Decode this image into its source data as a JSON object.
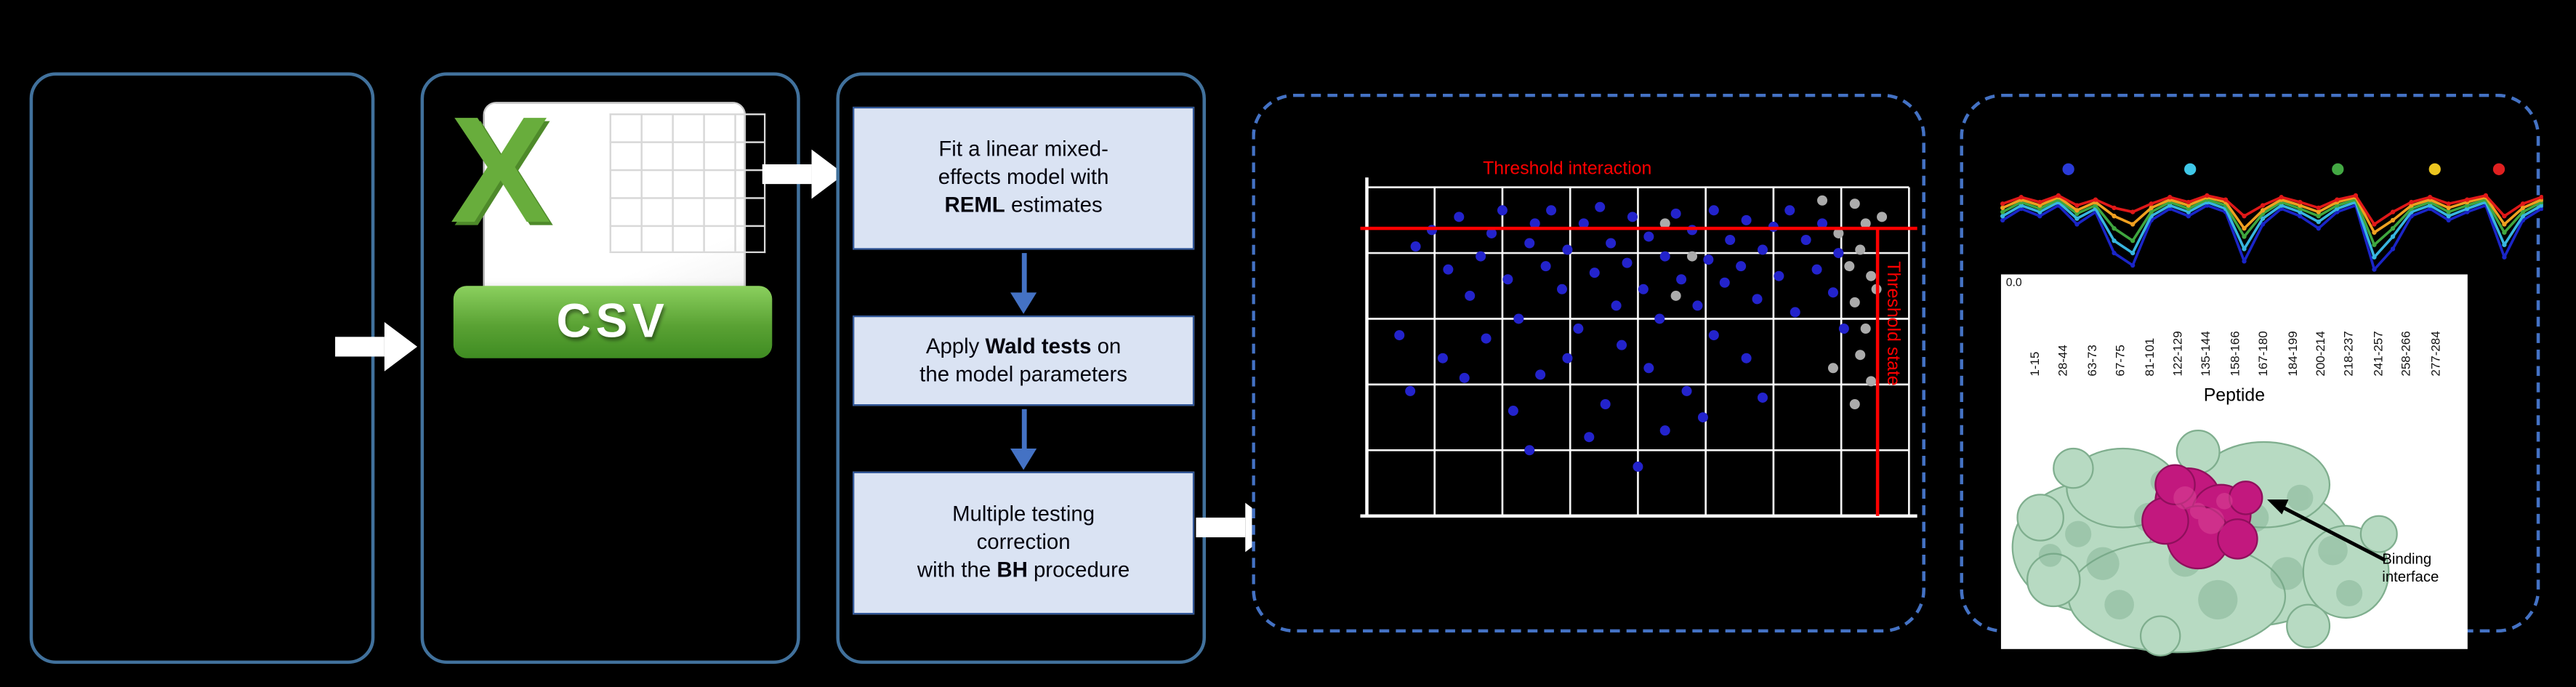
{
  "figure": {
    "background": "#000000",
    "solid_border_color": "#41719c",
    "dashed_border_color": "#4472c4",
    "flow_arrow_color": "#ffffff"
  },
  "csv_icon": {
    "logo_letter": "X",
    "banner_label": "CSV",
    "logo_green": "#68ad3c",
    "banner_green": "#5aa234"
  },
  "pipeline": {
    "step_fill": "#dae3f3",
    "step_border": "#2f5597",
    "down_arrow_color": "#4472c4",
    "steps": [
      {
        "pre": "Fit a linear mixed-\neffects model with\n",
        "bold": "REML",
        "post": " estimates"
      },
      {
        "pre": "Apply ",
        "bold": "Wald tests",
        "post": " on\nthe model parameters"
      },
      {
        "pre": "Multiple testing\ncorrection\nwith the ",
        "bold": "BH",
        "post": " procedure"
      }
    ]
  },
  "chart_data": [
    {
      "id": "global-peptide-scatter",
      "type": "scatter",
      "grid": true,
      "grid_color": "#ffffff",
      "axis_color": "#ffffff",
      "x_range": [
        0,
        1
      ],
      "y_range": [
        0,
        1
      ],
      "threshold_color": "#ff0000",
      "thresholds": {
        "horizontal_y": 0.125,
        "vertical_x": 0.942
      },
      "threshold_labels": {
        "horizontal": "Threshold interaction",
        "vertical": "Threshold state"
      },
      "series": [
        {
          "name": "significant-peptides",
          "color": "#2323cc",
          "points": [
            [
              0.06,
              0.45
            ],
            [
              0.09,
              0.18
            ],
            [
              0.12,
              0.13
            ],
            [
              0.15,
              0.25
            ],
            [
              0.17,
              0.09
            ],
            [
              0.19,
              0.33
            ],
            [
              0.21,
              0.21
            ],
            [
              0.23,
              0.14
            ],
            [
              0.25,
              0.07
            ],
            [
              0.26,
              0.28
            ],
            [
              0.28,
              0.4
            ],
            [
              0.3,
              0.17
            ],
            [
              0.31,
              0.11
            ],
            [
              0.33,
              0.24
            ],
            [
              0.34,
              0.07
            ],
            [
              0.36,
              0.31
            ],
            [
              0.37,
              0.19
            ],
            [
              0.39,
              0.43
            ],
            [
              0.4,
              0.11
            ],
            [
              0.42,
              0.26
            ],
            [
              0.43,
              0.06
            ],
            [
              0.45,
              0.17
            ],
            [
              0.46,
              0.36
            ],
            [
              0.48,
              0.23
            ],
            [
              0.49,
              0.09
            ],
            [
              0.51,
              0.31
            ],
            [
              0.52,
              0.15
            ],
            [
              0.54,
              0.4
            ],
            [
              0.55,
              0.21
            ],
            [
              0.57,
              0.08
            ],
            [
              0.58,
              0.28
            ],
            [
              0.6,
              0.13
            ],
            [
              0.61,
              0.36
            ],
            [
              0.63,
              0.22
            ],
            [
              0.64,
              0.07
            ],
            [
              0.66,
              0.29
            ],
            [
              0.67,
              0.16
            ],
            [
              0.69,
              0.24
            ],
            [
              0.7,
              0.1
            ],
            [
              0.72,
              0.34
            ],
            [
              0.73,
              0.19
            ],
            [
              0.75,
              0.12
            ],
            [
              0.76,
              0.27
            ],
            [
              0.78,
              0.07
            ],
            [
              0.79,
              0.38
            ],
            [
              0.81,
              0.16
            ],
            [
              0.83,
              0.25
            ],
            [
              0.84,
              0.11
            ],
            [
              0.86,
              0.32
            ],
            [
              0.87,
              0.2
            ],
            [
              0.14,
              0.52
            ],
            [
              0.32,
              0.57
            ],
            [
              0.44,
              0.66
            ],
            [
              0.52,
              0.55
            ],
            [
              0.27,
              0.68
            ],
            [
              0.59,
              0.62
            ],
            [
              0.37,
              0.52
            ],
            [
              0.7,
              0.52
            ],
            [
              0.22,
              0.46
            ],
            [
              0.47,
              0.48
            ],
            [
              0.64,
              0.45
            ],
            [
              0.08,
              0.62
            ],
            [
              0.88,
              0.43
            ],
            [
              0.55,
              0.74
            ],
            [
              0.3,
              0.8
            ],
            [
              0.73,
              0.64
            ],
            [
              0.18,
              0.58
            ],
            [
              0.41,
              0.76
            ],
            [
              0.62,
              0.7
            ],
            [
              0.5,
              0.85
            ]
          ]
        },
        {
          "name": "non-significant-peptides",
          "color": "#ababab",
          "points": [
            [
              0.9,
              0.05
            ],
            [
              0.92,
              0.11
            ],
            [
              0.91,
              0.19
            ],
            [
              0.93,
              0.27
            ],
            [
              0.9,
              0.35
            ],
            [
              0.92,
              0.43
            ],
            [
              0.91,
              0.51
            ],
            [
              0.93,
              0.59
            ],
            [
              0.9,
              0.66
            ],
            [
              0.84,
              0.04
            ],
            [
              0.87,
              0.14
            ],
            [
              0.55,
              0.11
            ],
            [
              0.6,
              0.21
            ],
            [
              0.57,
              0.33
            ],
            [
              0.95,
              0.09
            ],
            [
              0.94,
              0.31
            ],
            [
              0.86,
              0.55
            ],
            [
              0.89,
              0.24
            ]
          ]
        }
      ]
    },
    {
      "id": "deuterium-uptake-lines",
      "type": "line",
      "x_count": 30,
      "y_tick_label": "0.0",
      "series": [
        {
          "name": "series-darkblue",
          "color": "#1a25c8",
          "values": [
            0.4,
            0.26,
            0.35,
            0.22,
            0.45,
            0.3,
            0.8,
            0.95,
            0.4,
            0.26,
            0.35,
            0.22,
            0.3,
            0.9,
            0.45,
            0.26,
            0.35,
            0.5,
            0.3,
            0.22,
            1.0,
            0.75,
            0.35,
            0.26,
            0.4,
            0.3,
            0.22,
            0.85,
            0.4,
            0.26
          ]
        },
        {
          "name": "series-cyan",
          "color": "#38b6e0",
          "values": [
            0.35,
            0.22,
            0.3,
            0.18,
            0.38,
            0.26,
            0.65,
            0.8,
            0.35,
            0.22,
            0.3,
            0.18,
            0.26,
            0.75,
            0.38,
            0.22,
            0.3,
            0.42,
            0.26,
            0.18,
            0.85,
            0.6,
            0.3,
            0.22,
            0.35,
            0.26,
            0.18,
            0.7,
            0.35,
            0.22
          ]
        },
        {
          "name": "series-green",
          "color": "#3fa73f",
          "values": [
            0.3,
            0.18,
            0.26,
            0.15,
            0.32,
            0.22,
            0.5,
            0.65,
            0.3,
            0.18,
            0.26,
            0.15,
            0.22,
            0.6,
            0.32,
            0.18,
            0.26,
            0.35,
            0.22,
            0.15,
            0.7,
            0.5,
            0.26,
            0.18,
            0.3,
            0.22,
            0.15,
            0.55,
            0.3,
            0.18
          ]
        },
        {
          "name": "series-orange",
          "color": "#f0a020",
          "values": [
            0.25,
            0.15,
            0.22,
            0.12,
            0.28,
            0.18,
            0.35,
            0.45,
            0.25,
            0.15,
            0.22,
            0.12,
            0.18,
            0.5,
            0.28,
            0.15,
            0.22,
            0.3,
            0.18,
            0.12,
            0.55,
            0.4,
            0.22,
            0.15,
            0.25,
            0.18,
            0.12,
            0.45,
            0.25,
            0.15
          ]
        },
        {
          "name": "series-red",
          "color": "#e01818",
          "values": [
            0.2,
            0.12,
            0.18,
            0.1,
            0.22,
            0.15,
            0.25,
            0.3,
            0.2,
            0.12,
            0.18,
            0.1,
            0.15,
            0.35,
            0.22,
            0.12,
            0.18,
            0.25,
            0.15,
            0.1,
            0.45,
            0.3,
            0.18,
            0.12,
            0.2,
            0.15,
            0.1,
            0.35,
            0.2,
            0.12
          ]
        }
      ],
      "top_dots": [
        {
          "color": "#2a3bd8",
          "x": 0.122
        },
        {
          "color": "#3fc8e8",
          "x": 0.348
        },
        {
          "color": "#43a843",
          "x": 0.622
        },
        {
          "color": "#ecc51f",
          "x": 0.802
        },
        {
          "color": "#e02020",
          "x": 0.921
        }
      ]
    }
  ],
  "peptide_axis": {
    "y_tick": "0.0",
    "title": "Peptide",
    "labels": [
      "1-15",
      "28-44",
      "63-73",
      "67-75",
      "81-101",
      "122-129",
      "135-144",
      "158-166",
      "167-180",
      "184-199",
      "200-214",
      "218-237",
      "241-257",
      "258-266",
      "277-284"
    ]
  },
  "binding_label": "Binding interface",
  "protein": {
    "surface_color": "#b7dac2",
    "surface_shadow": "#6fa383",
    "interface_color": "#c2187e",
    "interface_highlight": "#da4597"
  }
}
